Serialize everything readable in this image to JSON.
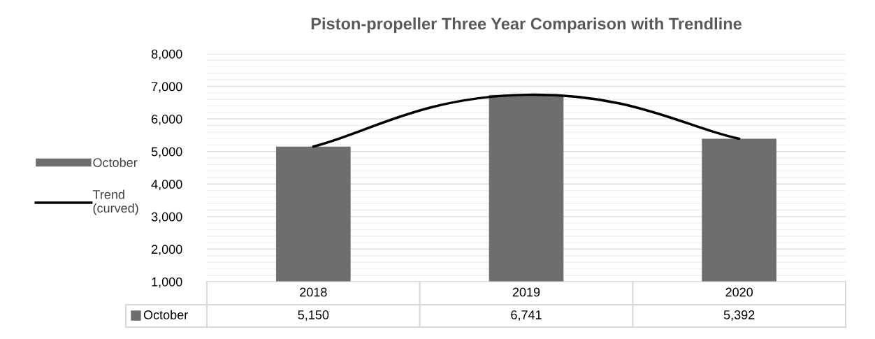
{
  "chart_data": {
    "type": "bar",
    "title": "Piston-propeller Three Year Comparison with Trendline",
    "categories": [
      "2018",
      "2019",
      "2020"
    ],
    "series": [
      {
        "name": "October",
        "color": "#6e6e6e",
        "values": [
          5150,
          6741,
          5392
        ],
        "value_labels": [
          "5,150",
          "6,741",
          "5,392"
        ]
      },
      {
        "name": "Trend (curved)",
        "type": "line",
        "color": "#000000",
        "values": [
          5150,
          6741,
          5392
        ]
      }
    ],
    "ylim": [
      1000,
      8000
    ],
    "yticks": [
      {
        "value": 1000,
        "label": "1,000"
      },
      {
        "value": 2000,
        "label": "2,000"
      },
      {
        "value": 3000,
        "label": "3,000"
      },
      {
        "value": 4000,
        "label": "4,000"
      },
      {
        "value": 5000,
        "label": "5,000"
      },
      {
        "value": 6000,
        "label": "6,000"
      },
      {
        "value": 7000,
        "label": "7,000"
      },
      {
        "value": 8000,
        "label": "8,000"
      }
    ],
    "grid": "y",
    "legend": "left"
  }
}
